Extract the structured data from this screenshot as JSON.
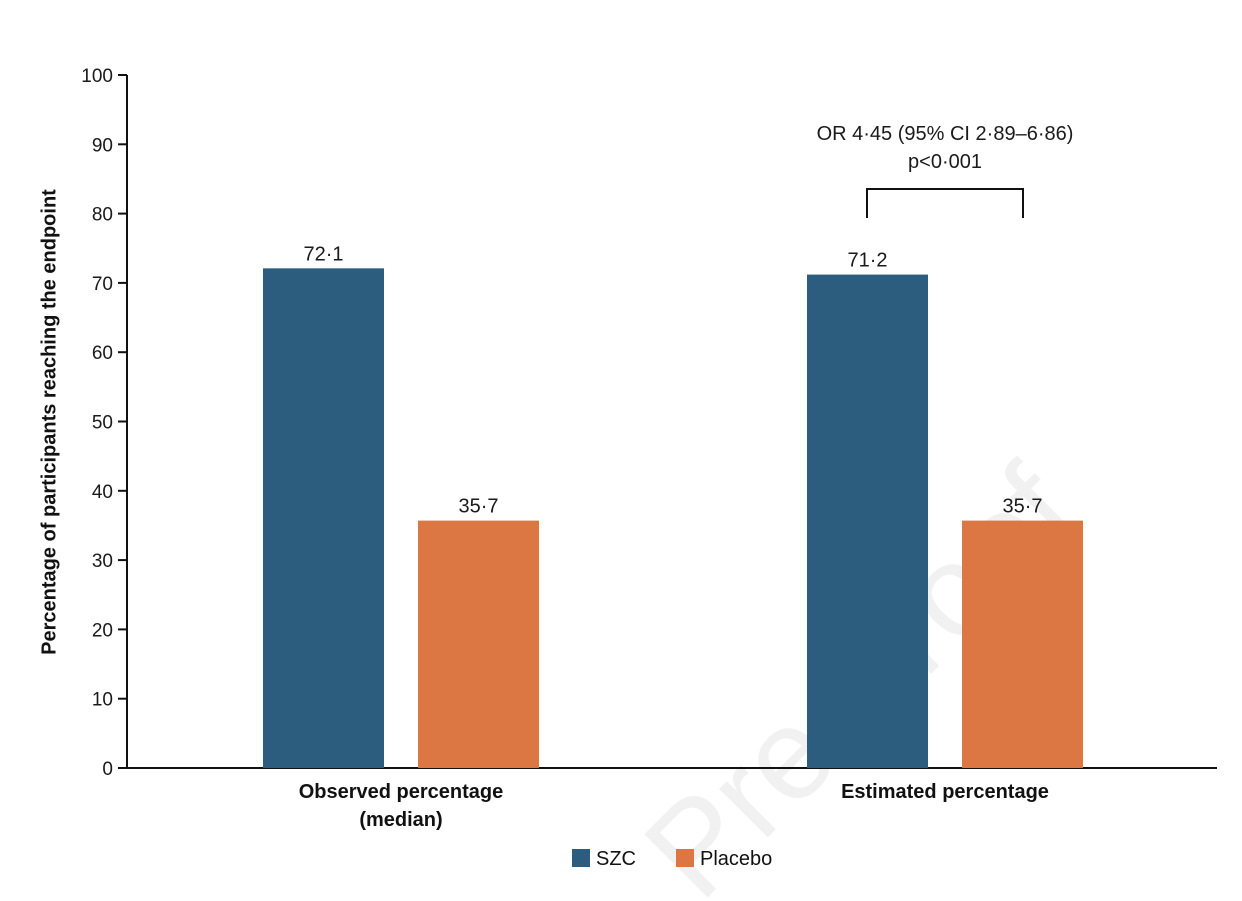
{
  "chart_data": {
    "type": "bar",
    "title": "",
    "xlabel": "",
    "ylabel": "Percentage of participants reaching the endpoint",
    "ylim": [
      0,
      100
    ],
    "yticks": [
      "0",
      "10",
      "20",
      "30",
      "40",
      "50",
      "60",
      "70",
      "80",
      "90",
      "100"
    ],
    "categories": [
      "Observed percentage",
      "Estimated percentage"
    ],
    "category_subtitles": [
      "(median)",
      ""
    ],
    "series": [
      {
        "name": "SZC",
        "values": [
          72.1,
          71.2
        ],
        "labels": [
          "72·1",
          "71·2"
        ],
        "color": "#2d5d7e"
      },
      {
        "name": "Placebo",
        "values": [
          35.7,
          35.7
        ],
        "labels": [
          "35·7",
          "35·7"
        ],
        "color": "#dc7642"
      }
    ],
    "annotation": {
      "category_index": 1,
      "line1": "OR 4·45 (95% CI 2·89–6·86)",
      "line2": "p<0·001"
    },
    "legend": {
      "position": "bottom-center"
    },
    "grid": false,
    "watermark": "Pre-proof"
  }
}
